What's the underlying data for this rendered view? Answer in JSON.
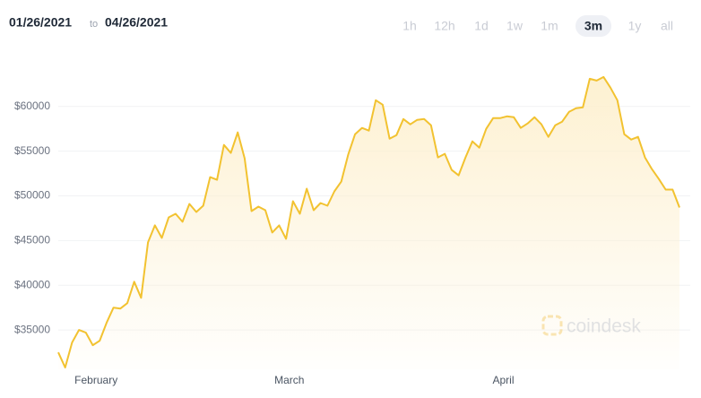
{
  "header": {
    "from": "01/26/2021",
    "joiner": "to",
    "until": "04/26/2021"
  },
  "range_buttons": {
    "labels": [
      "1h",
      "12h",
      "1d",
      "1w",
      "1m",
      "3m",
      "1y",
      "all"
    ],
    "active": 5
  },
  "watermark": "coindesk",
  "chart_data": {
    "type": "area",
    "categories": [
      null,
      null,
      null,
      null,
      null,
      null,
      "February",
      null,
      null,
      null,
      null,
      null,
      null,
      null,
      null,
      null,
      null,
      null,
      null,
      null,
      null,
      null,
      null,
      null,
      null,
      null,
      null,
      null,
      null,
      null,
      null,
      null,
      null,
      null,
      "March",
      null,
      null,
      null,
      null,
      null,
      null,
      null,
      null,
      null,
      null,
      null,
      null,
      null,
      null,
      null,
      null,
      null,
      null,
      null,
      null,
      null,
      null,
      null,
      null,
      null,
      null,
      null,
      null,
      null,
      null,
      "April",
      null,
      null,
      null,
      null,
      null,
      null,
      null,
      null,
      null,
      null,
      null,
      null,
      null,
      null,
      null,
      null,
      null,
      null,
      null,
      null,
      null,
      null,
      null,
      null,
      null
    ],
    "values": [
      32500,
      30800,
      33600,
      35000,
      34700,
      33300,
      33800,
      35800,
      37500,
      37400,
      38000,
      40400,
      38600,
      44800,
      46700,
      45300,
      47600,
      48000,
      47100,
      49100,
      48200,
      48900,
      52100,
      51800,
      55700,
      54800,
      57100,
      54200,
      48300,
      48800,
      48400,
      45900,
      46700,
      45200,
      49400,
      48000,
      50800,
      48400,
      49200,
      48900,
      50500,
      51600,
      54600,
      56900,
      57600,
      57300,
      60700,
      60200,
      56400,
      56800,
      58600,
      58000,
      58500,
      58600,
      57900,
      54300,
      54700,
      52900,
      52300,
      54300,
      56100,
      55400,
      57500,
      58700,
      58700,
      58900,
      58800,
      57600,
      58100,
      58800,
      58000,
      56600,
      57900,
      58300,
      59400,
      59800,
      59900,
      63100,
      62900,
      63300,
      62100,
      60700,
      56900,
      56300,
      56600,
      54300,
      53000,
      51900,
      50700,
      50700,
      48700
    ],
    "color": "#f2c230",
    "fill_color": "#fdf0cf",
    "ylim": [
      30600,
      67900
    ],
    "yticks": [
      {
        "value": 35000,
        "label": "$35000"
      },
      {
        "value": 40000,
        "label": "$40000"
      },
      {
        "value": 45000,
        "label": "$45000"
      },
      {
        "value": 50000,
        "label": "$50000"
      },
      {
        "value": 55000,
        "label": "$55000"
      },
      {
        "value": 60000,
        "label": "$60000"
      }
    ],
    "grid": true
  }
}
